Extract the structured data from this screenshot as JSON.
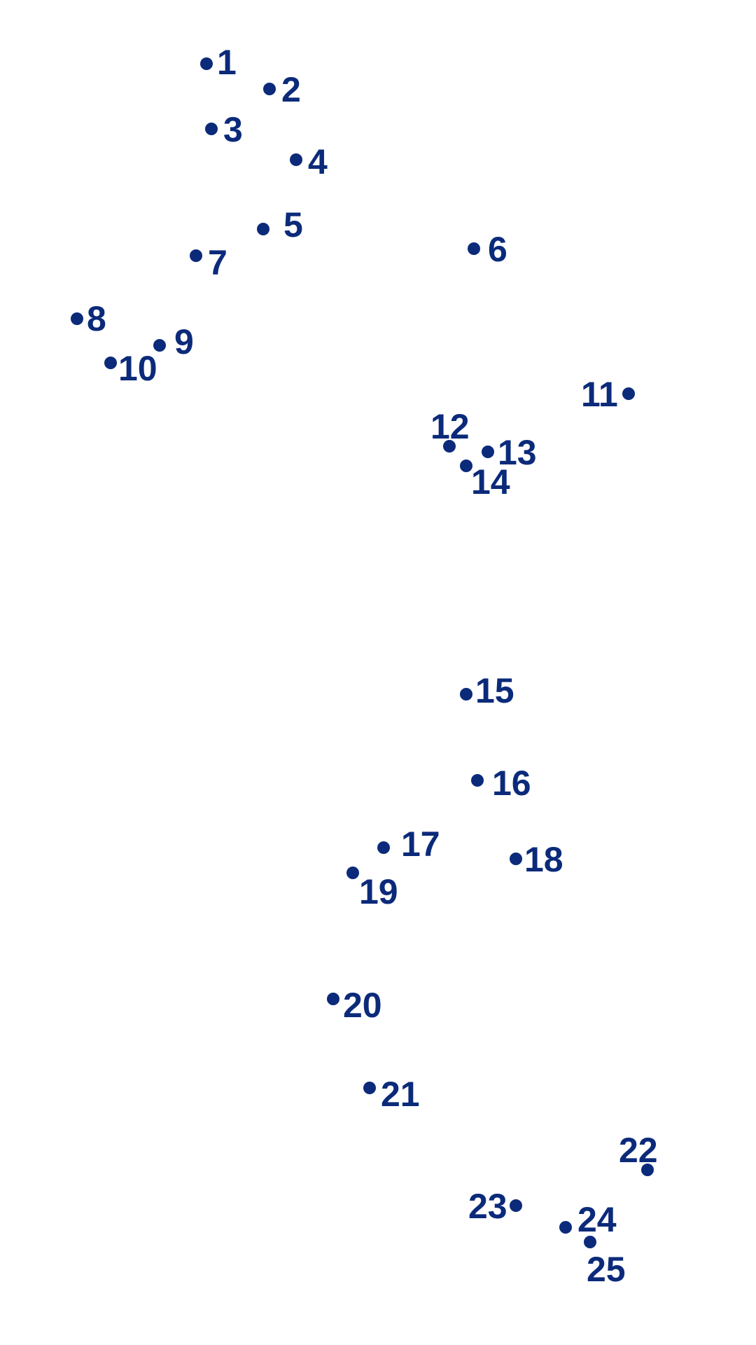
{
  "puzzle": {
    "type": "connect-the-dots",
    "dot_color": "#0b2a7a",
    "dots": [
      {
        "n": 1,
        "label": "1"
      },
      {
        "n": 2,
        "label": "2"
      },
      {
        "n": 3,
        "label": "3"
      },
      {
        "n": 4,
        "label": "4"
      },
      {
        "n": 5,
        "label": "5"
      },
      {
        "n": 6,
        "label": "6"
      },
      {
        "n": 7,
        "label": "7"
      },
      {
        "n": 8,
        "label": "8"
      },
      {
        "n": 9,
        "label": "9"
      },
      {
        "n": 10,
        "label": "10"
      },
      {
        "n": 11,
        "label": "11"
      },
      {
        "n": 12,
        "label": "12"
      },
      {
        "n": 13,
        "label": "13"
      },
      {
        "n": 14,
        "label": "14"
      },
      {
        "n": 15,
        "label": "15"
      },
      {
        "n": 16,
        "label": "16"
      },
      {
        "n": 17,
        "label": "17"
      },
      {
        "n": 18,
        "label": "18"
      },
      {
        "n": 19,
        "label": "19"
      },
      {
        "n": 20,
        "label": "20"
      },
      {
        "n": 21,
        "label": "21"
      },
      {
        "n": 22,
        "label": "22"
      },
      {
        "n": 23,
        "label": "23"
      },
      {
        "n": 24,
        "label": "24"
      },
      {
        "n": 25,
        "label": "25"
      }
    ]
  }
}
